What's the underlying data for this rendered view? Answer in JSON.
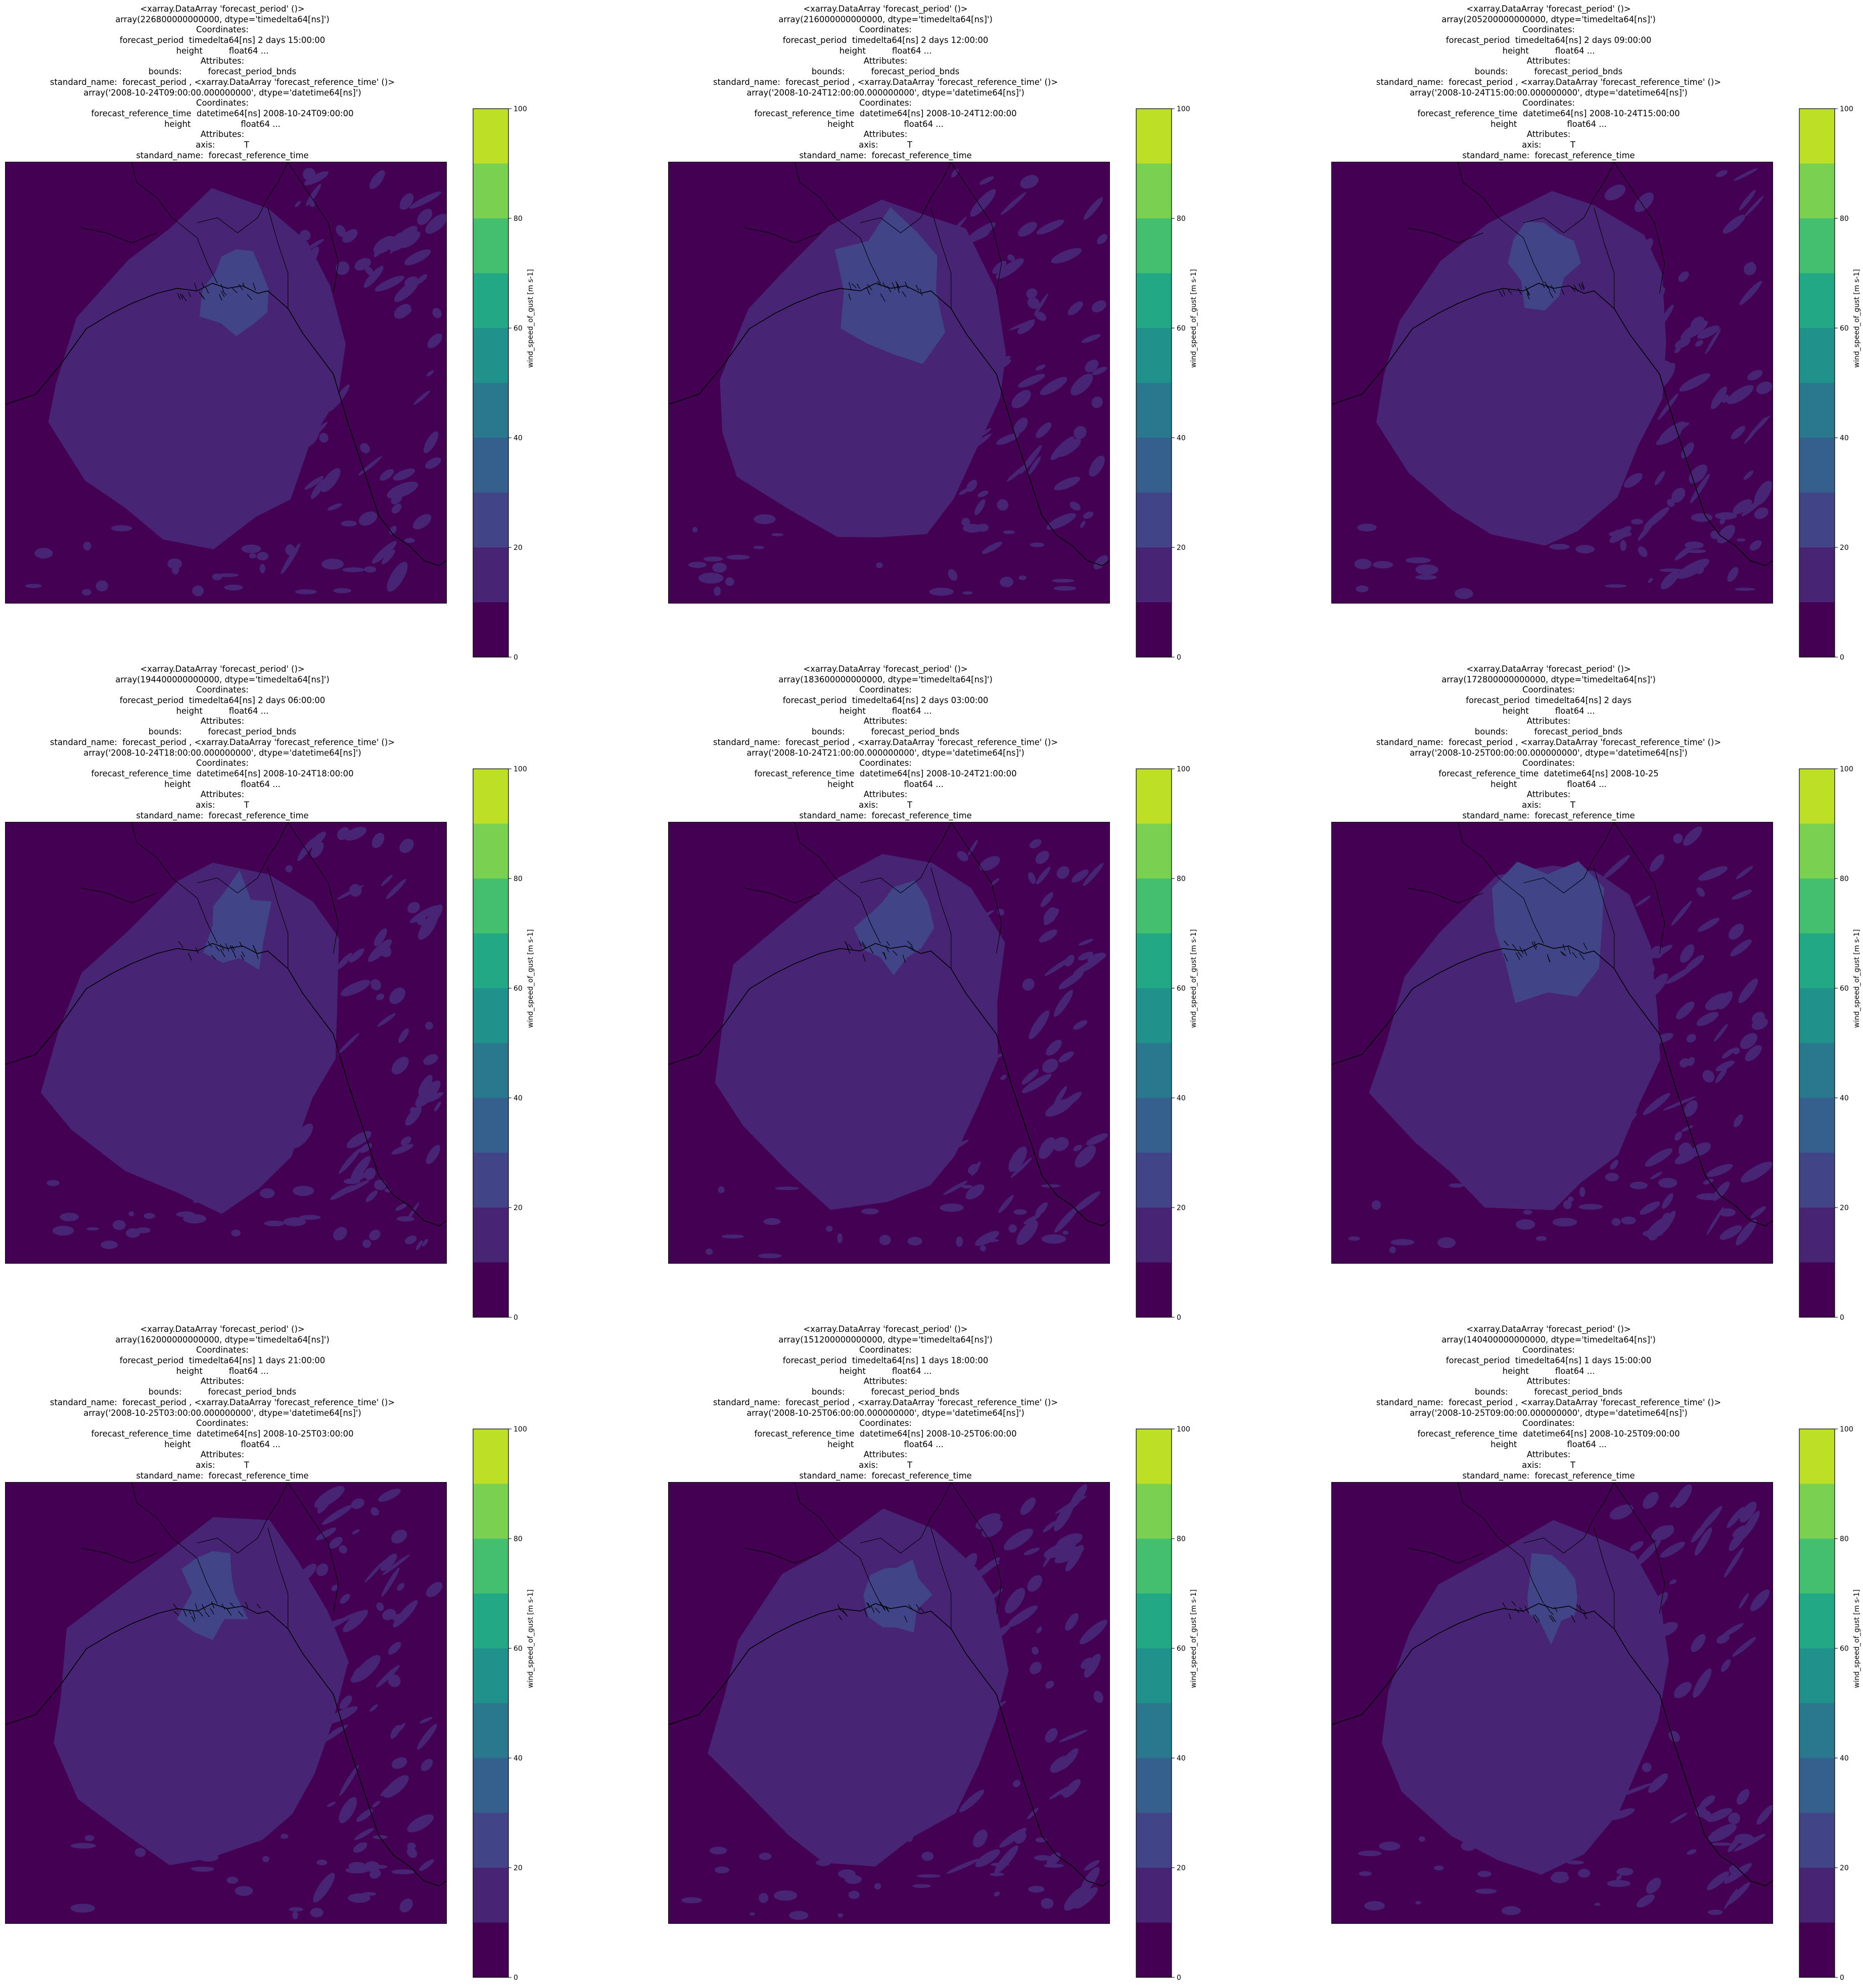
{
  "chart_data": {
    "type": "heatmap",
    "colorbar": {
      "label": "wind_speed_of_gust [m s-1]",
      "levels": [
        0,
        10,
        20,
        30,
        40,
        50,
        60,
        70,
        80,
        90,
        100
      ],
      "ticks": [
        "0",
        "20",
        "40",
        "60",
        "80",
        "100"
      ],
      "colors": [
        "#440154",
        "#482475",
        "#414487",
        "#355f8d",
        "#2a788e",
        "#21918c",
        "#22a884",
        "#44bf70",
        "#7ad151",
        "#bddf26",
        "#fde725"
      ]
    },
    "panels": [
      {
        "title_lines": [
          "<xarray.DataArray 'forecast_period' ()>",
          "array(226800000000000, dtype='timedelta64[ns]')",
          "Coordinates:",
          "    forecast_period  timedelta64[ns] 2 days 15:00:00",
          "    height          float64 ...",
          "Attributes:",
          "    bounds:          forecast_period_bnds",
          "    standard_name:  forecast_period , <xarray.DataArray 'forecast_reference_time' ()>",
          "array('2008-10-24T09:00:00.000000000', dtype='datetime64[ns]')",
          "Coordinates:",
          "    forecast_reference_time  datetime64[ns] 2008-10-24T09:00:00",
          "    height                   float64 ...",
          "Attributes:",
          "    axis:           T",
          "    standard_name:  forecast_reference_time"
        ]
      },
      {
        "title_lines": [
          "<xarray.DataArray 'forecast_period' ()>",
          "array(216000000000000, dtype='timedelta64[ns]')",
          "Coordinates:",
          "    forecast_period  timedelta64[ns] 2 days 12:00:00",
          "    height          float64 ...",
          "Attributes:",
          "    bounds:          forecast_period_bnds",
          "    standard_name:  forecast_period , <xarray.DataArray 'forecast_reference_time' ()>",
          "array('2008-10-24T12:00:00.000000000', dtype='datetime64[ns]')",
          "Coordinates:",
          "    forecast_reference_time  datetime64[ns] 2008-10-24T12:00:00",
          "    height                   float64 ...",
          "Attributes:",
          "    axis:           T",
          "    standard_name:  forecast_reference_time"
        ]
      },
      {
        "title_lines": [
          "<xarray.DataArray 'forecast_period' ()>",
          "array(205200000000000, dtype='timedelta64[ns]')",
          "Coordinates:",
          "    forecast_period  timedelta64[ns] 2 days 09:00:00",
          "    height          float64 ...",
          "Attributes:",
          "    bounds:          forecast_period_bnds",
          "    standard_name:  forecast_period , <xarray.DataArray 'forecast_reference_time' ()>",
          "array('2008-10-24T15:00:00.000000000', dtype='datetime64[ns]')",
          "Coordinates:",
          "    forecast_reference_time  datetime64[ns] 2008-10-24T15:00:00",
          "    height                   float64 ...",
          "Attributes:",
          "    axis:           T",
          "    standard_name:  forecast_reference_time"
        ]
      },
      {
        "title_lines": [
          "<xarray.DataArray 'forecast_period' ()>",
          "array(194400000000000, dtype='timedelta64[ns]')",
          "Coordinates:",
          "    forecast_period  timedelta64[ns] 2 days 06:00:00",
          "    height          float64 ...",
          "Attributes:",
          "    bounds:          forecast_period_bnds",
          "    standard_name:  forecast_period , <xarray.DataArray 'forecast_reference_time' ()>",
          "array('2008-10-24T18:00:00.000000000', dtype='datetime64[ns]')",
          "Coordinates:",
          "    forecast_reference_time  datetime64[ns] 2008-10-24T18:00:00",
          "    height                   float64 ...",
          "Attributes:",
          "    axis:           T",
          "    standard_name:  forecast_reference_time"
        ]
      },
      {
        "title_lines": [
          "<xarray.DataArray 'forecast_period' ()>",
          "array(183600000000000, dtype='timedelta64[ns]')",
          "Coordinates:",
          "    forecast_period  timedelta64[ns] 2 days 03:00:00",
          "    height          float64 ...",
          "Attributes:",
          "    bounds:          forecast_period_bnds",
          "    standard_name:  forecast_period , <xarray.DataArray 'forecast_reference_time' ()>",
          "array('2008-10-24T21:00:00.000000000', dtype='datetime64[ns]')",
          "Coordinates:",
          "    forecast_reference_time  datetime64[ns] 2008-10-24T21:00:00",
          "    height                   float64 ...",
          "Attributes:",
          "    axis:           T",
          "    standard_name:  forecast_reference_time"
        ]
      },
      {
        "title_lines": [
          "<xarray.DataArray 'forecast_period' ()>",
          "array(172800000000000, dtype='timedelta64[ns]')",
          "Coordinates:",
          "    forecast_period  timedelta64[ns] 2 days",
          "    height          float64 ...",
          "Attributes:",
          "    bounds:          forecast_period_bnds",
          "    standard_name:  forecast_period , <xarray.DataArray 'forecast_reference_time' ()>",
          "array('2008-10-25T00:00:00.000000000', dtype='datetime64[ns]')",
          "Coordinates:",
          "    forecast_reference_time  datetime64[ns] 2008-10-25",
          "    height                   float64 ...",
          "Attributes:",
          "    axis:           T",
          "    standard_name:  forecast_reference_time"
        ]
      },
      {
        "title_lines": [
          "<xarray.DataArray 'forecast_period' ()>",
          "array(162000000000000, dtype='timedelta64[ns]')",
          "Coordinates:",
          "    forecast_period  timedelta64[ns] 1 days 21:00:00",
          "    height          float64 ...",
          "Attributes:",
          "    bounds:          forecast_period_bnds",
          "    standard_name:  forecast_period , <xarray.DataArray 'forecast_reference_time' ()>",
          "array('2008-10-25T03:00:00.000000000', dtype='datetime64[ns]')",
          "Coordinates:",
          "    forecast_reference_time  datetime64[ns] 2008-10-25T03:00:00",
          "    height                   float64 ...",
          "Attributes:",
          "    axis:           T",
          "    standard_name:  forecast_reference_time"
        ]
      },
      {
        "title_lines": [
          "<xarray.DataArray 'forecast_period' ()>",
          "array(151200000000000, dtype='timedelta64[ns]')",
          "Coordinates:",
          "    forecast_period  timedelta64[ns] 1 days 18:00:00",
          "    height          float64 ...",
          "Attributes:",
          "    bounds:          forecast_period_bnds",
          "    standard_name:  forecast_period , <xarray.DataArray 'forecast_reference_time' ()>",
          "array('2008-10-25T06:00:00.000000000', dtype='datetime64[ns]')",
          "Coordinates:",
          "    forecast_reference_time  datetime64[ns] 2008-10-25T06:00:00",
          "    height                   float64 ...",
          "Attributes:",
          "    axis:           T",
          "    standard_name:  forecast_reference_time"
        ]
      },
      {
        "title_lines": [
          "<xarray.DataArray 'forecast_period' ()>",
          "array(140400000000000, dtype='timedelta64[ns]')",
          "Coordinates:",
          "    forecast_period  timedelta64[ns] 1 days 15:00:00",
          "    height          float64 ...",
          "Attributes:",
          "    bounds:          forecast_period_bnds",
          "    standard_name:  forecast_period , <xarray.DataArray 'forecast_reference_time' ()>",
          "array('2008-10-25T09:00:00.000000000', dtype='datetime64[ns]')",
          "Coordinates:",
          "    forecast_reference_time  datetime64[ns] 2008-10-25T09:00:00",
          "    height                   float64 ...",
          "Attributes:",
          "    axis:           T",
          "    standard_name:  forecast_reference_time"
        ]
      }
    ]
  }
}
